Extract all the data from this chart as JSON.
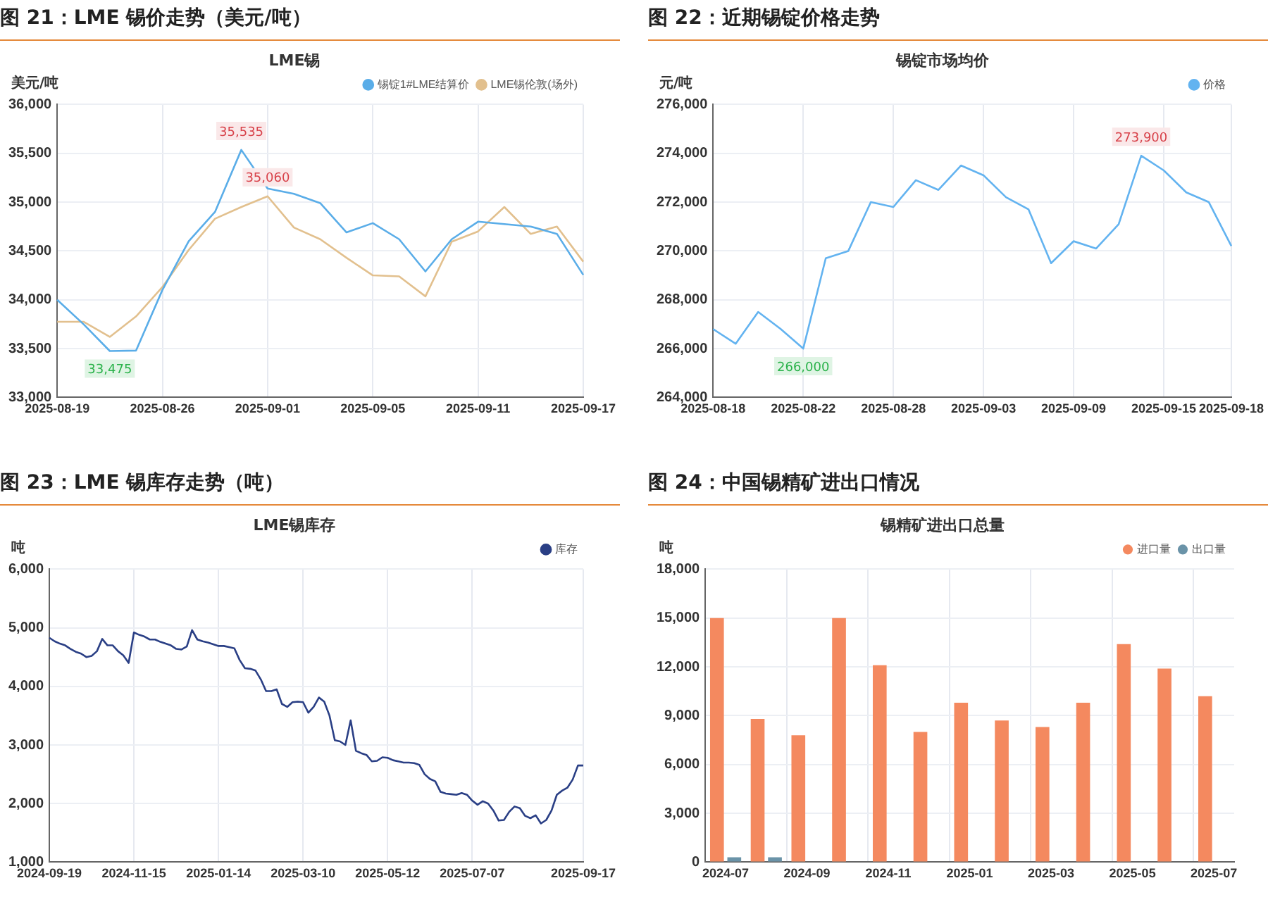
{
  "chart_data": [
    {
      "type": "line",
      "title": "图 21：LME 锡价走势（美元/吨）",
      "subtitle": "LME锡",
      "ylabel": "美元/吨",
      "legend": "top right",
      "grid": true,
      "marker": "none",
      "categories": [
        "2025-08-19",
        null,
        null,
        null,
        "2025-08-26",
        null,
        null,
        null,
        "2025-09-01",
        null,
        null,
        null,
        "2025-09-05",
        null,
        null,
        null,
        "2025-09-11",
        null,
        null,
        null,
        "2025-09-17"
      ],
      "ylim": [
        33000,
        36000
      ],
      "yticks": [
        {
          "value": 33000,
          "label": "33,000"
        },
        {
          "value": 33500,
          "label": "33,500"
        },
        {
          "value": 34000,
          "label": "34,000"
        },
        {
          "value": 34500,
          "label": "34,500"
        },
        {
          "value": 35000,
          "label": "35,000"
        },
        {
          "value": 35500,
          "label": "35,500"
        },
        {
          "value": 36000,
          "label": "36,000"
        }
      ],
      "series": [
        {
          "name": "锡锭1#LME结算价",
          "color": "#5aade8",
          "values": [
            34000,
            33750,
            33475,
            33480,
            34100,
            34600,
            34900,
            35535,
            35140,
            35085,
            34990,
            34690,
            34785,
            34620,
            34290,
            34620,
            34800,
            34775,
            34750,
            34675,
            34255
          ]
        },
        {
          "name": "LME锡伦敦(场外)",
          "color": "#e2c08e",
          "values": [
            33775,
            33775,
            33620,
            33830,
            34130,
            34510,
            34830,
            34950,
            35060,
            34740,
            34620,
            34430,
            34250,
            34240,
            34035,
            34595,
            34700,
            34950,
            34675,
            34750,
            34390
          ]
        }
      ],
      "annotations": [
        {
          "text": "35,535",
          "y": 35535
        },
        {
          "text": "35,060",
          "y": 35060
        },
        {
          "text": "33,475",
          "y": 33475
        }
      ]
    },
    {
      "type": "line",
      "title": "图 22：近期锡锭价格走势",
      "subtitle": "锡锭市场均价",
      "ylabel": "元/吨",
      "legend": "top right",
      "grid": true,
      "marker": "none",
      "categories": [
        "2025-08-18",
        null,
        null,
        null,
        "2025-08-22",
        null,
        null,
        null,
        "2025-08-28",
        null,
        null,
        null,
        "2025-09-03",
        null,
        null,
        null,
        "2025-09-09",
        null,
        null,
        null,
        "2025-09-15",
        null,
        null,
        "2025-09-18"
      ],
      "ylim": [
        264000,
        276000
      ],
      "yticks": [
        {
          "value": 264000,
          "label": "264,000"
        },
        {
          "value": 266000,
          "label": "266,000"
        },
        {
          "value": 268000,
          "label": "268,000"
        },
        {
          "value": 270000,
          "label": "270,000"
        },
        {
          "value": 272000,
          "label": "272,000"
        },
        {
          "value": 274000,
          "label": "274,000"
        },
        {
          "value": 276000,
          "label": "276,000"
        }
      ],
      "series": [
        {
          "name": "价格",
          "color": "#63b3f0",
          "values": [
            266800,
            266200,
            267500,
            266800,
            266000,
            269700,
            270000,
            272000,
            271800,
            272900,
            272500,
            273500,
            273100,
            272200,
            271700,
            269500,
            270400,
            270100,
            271100,
            273900,
            273300,
            272400,
            272000,
            270200
          ]
        }
      ],
      "annotations": [
        {
          "text": "273,900",
          "y": 273900
        },
        {
          "text": "266,000",
          "y": 266000
        }
      ]
    },
    {
      "type": "line",
      "title": "图 23：LME 锡库存走势（吨）",
      "subtitle": "LME锡库存",
      "ylabel": "吨",
      "legend": "top right",
      "grid": true,
      "marker": "none",
      "categories": [
        "2024-09-19",
        null,
        null,
        null,
        null,
        null,
        null,
        null,
        null,
        null,
        null,
        null,
        null,
        null,
        null,
        null,
        "2024-11-15",
        null,
        null,
        null,
        null,
        null,
        null,
        null,
        null,
        null,
        null,
        null,
        null,
        null,
        null,
        null,
        "2025-01-14",
        null,
        null,
        null,
        null,
        null,
        null,
        null,
        null,
        null,
        null,
        null,
        null,
        null,
        null,
        null,
        "2025-03-10",
        null,
        null,
        null,
        null,
        null,
        null,
        null,
        null,
        null,
        null,
        null,
        null,
        null,
        null,
        null,
        "2025-05-12",
        null,
        null,
        null,
        null,
        null,
        null,
        null,
        null,
        null,
        null,
        null,
        null,
        null,
        null,
        null,
        "2025-07-07",
        null,
        null,
        null,
        null,
        null,
        null,
        null,
        null,
        null,
        null,
        null,
        null,
        null,
        null,
        null,
        null,
        null,
        null,
        null,
        null,
        "2025-09-17"
      ],
      "ylim": [
        1000,
        6000
      ],
      "yticks": [
        {
          "value": 1000,
          "label": "1,000"
        },
        {
          "value": 2000,
          "label": "2,000"
        },
        {
          "value": 3000,
          "label": "3,000"
        },
        {
          "value": 4000,
          "label": "4,000"
        },
        {
          "value": 5000,
          "label": "5,000"
        },
        {
          "value": 6000,
          "label": "6,000"
        }
      ],
      "series": [
        {
          "name": "库存",
          "color": "#2a3f85",
          "values": [
            4830,
            4770,
            4730,
            4700,
            4640,
            4590,
            4560,
            4500,
            4520,
            4600,
            4810,
            4700,
            4700,
            4600,
            4530,
            4400,
            4920,
            4880,
            4850,
            4800,
            4800,
            4760,
            4730,
            4700,
            4640,
            4630,
            4680,
            4960,
            4800,
            4770,
            4750,
            4720,
            4690,
            4690,
            4670,
            4650,
            4450,
            4310,
            4300,
            4270,
            4120,
            3920,
            3920,
            3950,
            3700,
            3650,
            3730,
            3740,
            3730,
            3550,
            3650,
            3810,
            3740,
            3500,
            3080,
            3060,
            3000,
            3420,
            2900,
            2860,
            2830,
            2720,
            2730,
            2790,
            2780,
            2740,
            2720,
            2700,
            2700,
            2690,
            2660,
            2500,
            2420,
            2380,
            2200,
            2170,
            2160,
            2150,
            2180,
            2150,
            2050,
            1980,
            2040,
            2000,
            1880,
            1710,
            1720,
            1860,
            1950,
            1920,
            1790,
            1750,
            1800,
            1660,
            1720,
            1880,
            2150,
            2220,
            2270,
            2410,
            2650,
            2650
          ]
        }
      ]
    },
    {
      "type": "bar",
      "title": "图 24：中国锡精矿进出口情况",
      "subtitle": "锡精矿进出口总量",
      "ylabel": "吨",
      "legend": "top right",
      "grid": true,
      "categories": [
        "2024-07",
        null,
        "2024-09",
        null,
        "2024-11",
        null,
        "2025-01",
        null,
        "2025-03",
        null,
        "2025-05",
        null,
        "2025-07"
      ],
      "ylim": [
        0,
        18000
      ],
      "yticks": [
        {
          "value": 0,
          "label": "0"
        },
        {
          "value": 3000,
          "label": "3,000"
        },
        {
          "value": 6000,
          "label": "6,000"
        },
        {
          "value": 9000,
          "label": "9,000"
        },
        {
          "value": 12000,
          "label": "12,000"
        },
        {
          "value": 15000,
          "label": "15,000"
        },
        {
          "value": 18000,
          "label": "18,000"
        }
      ],
      "series": [
        {
          "name": "进口量",
          "color": "#f4895f",
          "values": [
            15000,
            8800,
            7800,
            15000,
            12100,
            8000,
            9800,
            8700,
            8300,
            9800,
            13400,
            11900,
            10200
          ]
        },
        {
          "name": "出口量",
          "color": "#6a93a8",
          "values": [
            300,
            300,
            null,
            null,
            null,
            null,
            null,
            null,
            null,
            null,
            null,
            null,
            null
          ]
        }
      ]
    }
  ]
}
